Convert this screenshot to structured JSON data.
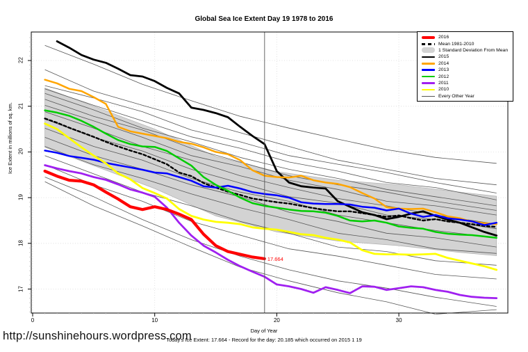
{
  "chart": {
    "title": "Global Sea Ice Extent Day 19 1978 to 2016",
    "y_axis": {
      "label": "Ice Extent in millions of sq. km.",
      "ticks": [
        17,
        18,
        19,
        20,
        21,
        22
      ]
    },
    "x_axis": {
      "label": "Day of Year",
      "ticks": [
        0,
        10,
        20,
        30
      ]
    }
  },
  "annotation": {
    "label": "17.664"
  },
  "footer": {
    "url": "http://sunshinehours.wordpress.com",
    "summary": "Today's Ice Extent: 17.664  - Record for the day: 20.185 which occurred on 2015 1 19"
  },
  "legend": {
    "items": [
      {
        "label": "2016",
        "swatch": "thick-line",
        "color": "#ff0000"
      },
      {
        "label": "Mean 1981-2010",
        "swatch": "dashed-line",
        "color": "#000000"
      },
      {
        "label": "1 Standard Deviation From Mean",
        "swatch": "band",
        "color": "#d3d3d3"
      },
      {
        "label": "2015",
        "swatch": "line",
        "color": "#000000"
      },
      {
        "label": "2014",
        "swatch": "line",
        "color": "#ffa500"
      },
      {
        "label": "2013",
        "swatch": "line",
        "color": "#0000ff"
      },
      {
        "label": "2012",
        "swatch": "line",
        "color": "#00cc00"
      },
      {
        "label": "2011",
        "swatch": "line",
        "color": "#a020f0"
      },
      {
        "label": "2010",
        "swatch": "line",
        "color": "#ffff00"
      },
      {
        "label": "Every Other Year",
        "swatch": "thin-line",
        "color": "#555555"
      }
    ]
  },
  "chart_data": {
    "type": "line",
    "title": "Global Sea Ice Extent Day 19 1978 to 2016",
    "xlabel": "Day of Year",
    "ylabel": "Ice Extent in millions of sq. km.",
    "xlim": [
      0,
      38.9
    ],
    "ylim": [
      16.45,
      22.62
    ],
    "grid": "dotted-at-ticks",
    "marker_day": 19,
    "band": {
      "name": "1 Standard Deviation From Mean",
      "days": [
        1,
        5,
        10,
        15,
        20,
        25,
        30,
        35,
        38
      ],
      "top": [
        21.4,
        21.0,
        20.5,
        19.9,
        19.57,
        19.38,
        19.28,
        19.12,
        19.03
      ],
      "bottom": [
        20.1,
        19.7,
        19.2,
        18.6,
        18.25,
        18.05,
        17.95,
        17.8,
        17.73
      ]
    },
    "series": [
      {
        "name": "Mean 1981-2010",
        "style": "dashed",
        "color": "#000000",
        "width": 2.4,
        "start_day": 1,
        "values": [
          20.73,
          20.64,
          20.53,
          20.43,
          20.33,
          20.22,
          20.12,
          20.03,
          19.95,
          19.84,
          19.73,
          19.55,
          19.47,
          19.32,
          19.22,
          19.13,
          19.06,
          18.98,
          18.94,
          18.9,
          18.87,
          18.82,
          18.77,
          18.73,
          18.7,
          18.7,
          18.66,
          18.62,
          18.58,
          18.61,
          18.55,
          18.5,
          18.53,
          18.48,
          18.45,
          18.42,
          18.38,
          18.36
        ]
      },
      {
        "name": "2015",
        "style": "solid",
        "color": "#000000",
        "width": 2.8,
        "start_day": 2,
        "values": [
          22.42,
          22.28,
          22.12,
          22.02,
          21.95,
          21.82,
          21.68,
          21.65,
          21.55,
          21.4,
          21.28,
          20.97,
          20.92,
          20.85,
          20.76,
          20.55,
          20.35,
          20.17,
          19.58,
          19.33,
          19.25,
          19.22,
          19.2,
          18.92,
          18.8,
          18.68,
          18.62,
          18.53,
          18.58,
          18.65,
          18.7,
          18.6,
          18.52,
          18.45,
          18.35,
          18.25,
          18.17
        ]
      },
      {
        "name": "2014",
        "style": "solid",
        "color": "#ffa500",
        "width": 2.5,
        "start_day": 1,
        "values": [
          21.58,
          21.5,
          21.38,
          21.33,
          21.2,
          21.05,
          20.55,
          20.45,
          20.4,
          20.35,
          20.3,
          20.22,
          20.18,
          20.1,
          20.0,
          19.95,
          19.82,
          19.6,
          19.48,
          19.45,
          19.44,
          19.48,
          19.38,
          19.33,
          19.3,
          19.23,
          19.1,
          18.98,
          18.79,
          18.76,
          18.75,
          18.76,
          18.68,
          18.59,
          18.55,
          18.47,
          18.44,
          18.42
        ]
      },
      {
        "name": "2013",
        "style": "solid",
        "color": "#0000ff",
        "width": 2.5,
        "start_day": 1,
        "values": [
          20.03,
          19.98,
          19.91,
          19.87,
          19.83,
          19.76,
          19.71,
          19.66,
          19.61,
          19.55,
          19.53,
          19.45,
          19.37,
          19.25,
          19.22,
          19.26,
          19.2,
          19.12,
          19.08,
          19.05,
          19.0,
          18.9,
          18.87,
          18.86,
          18.86,
          18.85,
          18.8,
          18.78,
          18.72,
          18.76,
          18.65,
          18.58,
          18.62,
          18.55,
          18.52,
          18.48,
          18.4,
          18.45
        ]
      },
      {
        "name": "2012",
        "style": "solid",
        "color": "#00cc00",
        "width": 2.5,
        "start_day": 1,
        "values": [
          20.91,
          20.86,
          20.79,
          20.68,
          20.55,
          20.4,
          20.26,
          20.17,
          20.12,
          20.11,
          20.02,
          19.86,
          19.7,
          19.45,
          19.28,
          19.15,
          19.0,
          18.88,
          18.82,
          18.78,
          18.74,
          18.71,
          18.7,
          18.67,
          18.6,
          18.5,
          18.48,
          18.5,
          18.45,
          18.37,
          18.34,
          18.32,
          18.25,
          18.21,
          18.19,
          18.18,
          18.15,
          18.12
        ]
      },
      {
        "name": "2011",
        "style": "solid",
        "color": "#a020f0",
        "width": 2.8,
        "start_day": 1,
        "values": [
          19.71,
          19.64,
          19.58,
          19.53,
          19.45,
          19.39,
          19.29,
          19.18,
          19.11,
          19.02,
          18.78,
          18.45,
          18.17,
          17.95,
          17.8,
          17.64,
          17.5,
          17.38,
          17.27,
          17.1,
          17.06,
          17.0,
          16.92,
          17.04,
          16.98,
          16.91,
          17.06,
          17.05,
          16.98,
          17.02,
          17.06,
          17.04,
          16.98,
          16.94,
          16.87,
          16.83,
          16.81,
          16.8
        ]
      },
      {
        "name": "2010",
        "style": "solid",
        "color": "#ffff00",
        "width": 2.8,
        "start_day": 1,
        "values": [
          20.62,
          20.5,
          20.3,
          20.1,
          19.92,
          19.75,
          19.53,
          19.4,
          19.21,
          19.1,
          18.98,
          18.75,
          18.6,
          18.52,
          18.47,
          18.45,
          18.42,
          18.35,
          18.32,
          18.3,
          18.25,
          18.2,
          18.18,
          18.12,
          18.08,
          18.02,
          17.85,
          17.77,
          17.76,
          17.76,
          17.75,
          17.76,
          17.77,
          17.68,
          17.62,
          17.56,
          17.5,
          17.42
        ]
      },
      {
        "name": "2016",
        "style": "solid",
        "color": "#ff0000",
        "width": 4.2,
        "start_day": 1,
        "values": [
          19.58,
          19.47,
          19.38,
          19.36,
          19.28,
          19.12,
          18.97,
          18.8,
          18.74,
          18.8,
          18.74,
          18.64,
          18.52,
          18.2,
          17.95,
          17.82,
          17.76,
          17.7,
          17.664
        ]
      }
    ],
    "other_years": {
      "name": "Every Other Year",
      "color": "#555555",
      "width": 0.8,
      "days": [
        1,
        5,
        9,
        13,
        17,
        21,
        25,
        29,
        33,
        38
      ],
      "lines": [
        [
          22.33,
          21.92,
          21.48,
          21.12,
          20.78,
          20.52,
          20.28,
          20.05,
          19.88,
          19.75
        ],
        [
          21.8,
          21.33,
          21.02,
          20.72,
          20.42,
          20.12,
          19.82,
          19.62,
          19.42,
          19.28
        ],
        [
          21.45,
          21.18,
          20.88,
          20.48,
          20.22,
          19.92,
          19.73,
          19.55,
          19.33,
          19.1
        ],
        [
          21.38,
          21.02,
          20.68,
          20.33,
          20.08,
          19.78,
          19.58,
          19.33,
          19.22,
          18.95
        ],
        [
          21.28,
          20.92,
          20.52,
          20.22,
          19.88,
          19.62,
          19.42,
          19.18,
          19.02,
          18.82
        ],
        [
          21.15,
          20.78,
          20.48,
          20.08,
          19.78,
          19.48,
          19.28,
          19.12,
          18.92,
          18.72
        ],
        [
          21.02,
          20.68,
          20.32,
          19.92,
          19.68,
          19.38,
          19.18,
          18.92,
          18.82,
          18.62
        ],
        [
          20.88,
          20.52,
          20.12,
          19.82,
          19.48,
          19.22,
          18.98,
          18.82,
          18.62,
          18.42
        ],
        [
          20.72,
          20.32,
          20.02,
          19.62,
          19.32,
          19.02,
          18.88,
          18.62,
          18.52,
          18.32
        ],
        [
          20.52,
          20.12,
          19.82,
          19.42,
          19.12,
          18.92,
          18.62,
          18.45,
          18.28,
          18.12
        ],
        [
          20.32,
          19.92,
          19.62,
          19.28,
          19.02,
          18.68,
          18.48,
          18.22,
          18.12,
          17.92
        ],
        [
          20.12,
          19.72,
          19.42,
          19.08,
          18.78,
          18.52,
          18.22,
          18.08,
          17.88,
          17.78
        ],
        [
          19.92,
          19.52,
          19.12,
          18.82,
          18.48,
          18.22,
          17.92,
          17.82,
          17.62,
          17.52
        ],
        [
          19.72,
          19.28,
          18.92,
          18.48,
          18.18,
          17.88,
          17.72,
          17.52,
          17.32,
          17.22
        ],
        [
          19.45,
          19.02,
          18.52,
          18.08,
          17.72,
          17.42,
          17.18,
          17.02,
          16.82,
          16.62
        ],
        [
          19.35,
          18.82,
          18.38,
          17.92,
          17.48,
          17.18,
          16.92,
          16.72,
          16.45,
          16.55
        ]
      ]
    }
  }
}
